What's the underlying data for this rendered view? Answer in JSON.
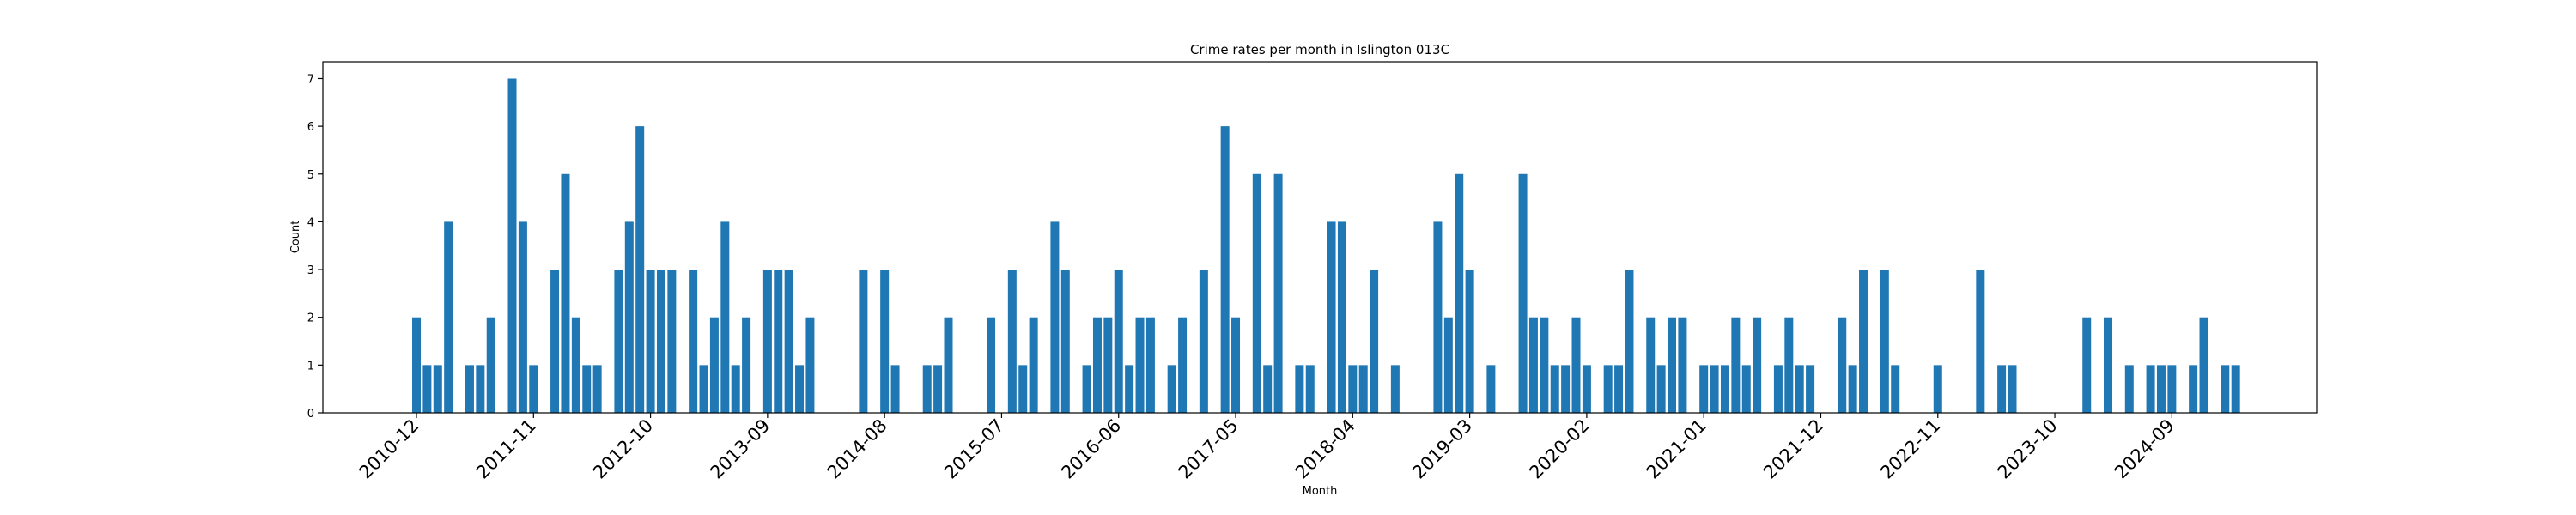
{
  "chart_data": {
    "type": "bar",
    "title": "Crime rates per month in Islington 013C",
    "xlabel": "Month",
    "ylabel": "Count",
    "ylim": [
      0,
      7.35
    ],
    "yticks": [
      0,
      1,
      2,
      3,
      4,
      5,
      6,
      7
    ],
    "bar_color": "#1f77b4",
    "xtick_labels": [
      "2010-12",
      "2011-11",
      "2012-10",
      "2013-09",
      "2014-08",
      "2015-07",
      "2016-06",
      "2017-05",
      "2018-04",
      "2019-03",
      "2020-02",
      "2021-01",
      "2021-12",
      "2022-11",
      "2023-10",
      "2024-09"
    ],
    "series": [
      {
        "values": [
          2,
          1,
          1,
          4,
          0,
          1,
          1,
          2,
          0,
          7,
          4,
          1,
          0,
          3,
          5,
          2,
          1,
          1,
          0,
          3,
          4,
          6,
          3,
          3,
          3,
          0,
          3,
          1,
          2,
          4,
          1,
          2,
          0,
          3,
          3,
          3,
          1,
          2,
          0,
          0,
          0,
          0,
          3,
          0,
          3,
          1,
          0,
          0,
          1,
          1,
          2,
          0,
          0,
          0,
          2,
          0,
          3,
          1,
          2,
          0,
          4,
          3,
          0,
          1,
          2,
          2,
          3,
          1,
          2,
          2,
          0,
          1,
          2,
          0,
          3,
          0,
          6,
          2,
          0,
          5,
          1,
          5,
          0,
          1,
          1,
          0,
          4,
          4,
          1,
          1,
          3,
          0,
          1,
          0,
          0,
          0,
          4,
          2,
          5,
          3,
          0,
          1,
          0,
          0,
          5,
          2,
          2,
          1,
          1,
          2,
          1,
          0,
          1,
          1,
          3,
          0,
          2,
          1,
          2,
          2,
          0,
          1,
          1,
          1,
          2,
          1,
          2,
          0,
          1,
          2,
          1,
          1,
          0,
          0,
          2,
          1,
          3,
          0,
          3,
          1,
          0,
          0,
          0,
          1,
          0,
          0,
          0,
          3,
          0,
          1,
          1,
          0,
          0,
          0,
          0,
          0,
          0,
          2,
          0,
          2,
          0,
          1,
          0,
          1,
          1,
          1,
          0,
          1,
          2,
          0,
          1,
          1
        ]
      }
    ]
  }
}
